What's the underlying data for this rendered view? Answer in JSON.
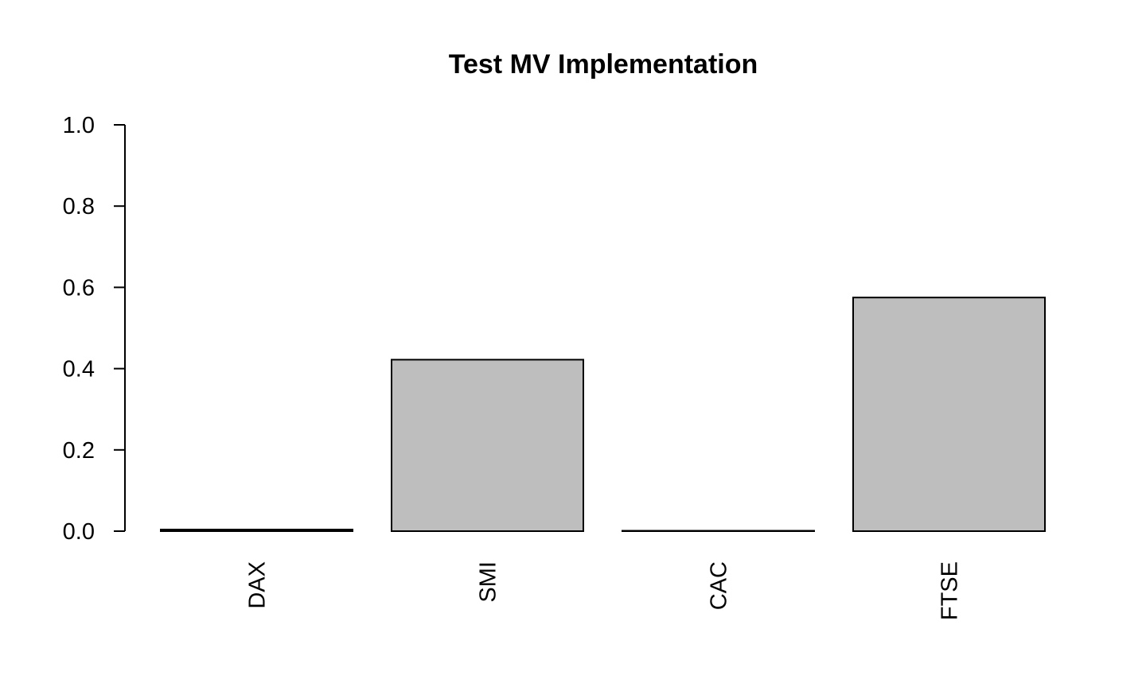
{
  "chart_data": {
    "type": "bar",
    "title": "Test MV Implementation",
    "xlabel": "",
    "ylabel": "",
    "categories": [
      "DAX",
      "SMI",
      "CAC",
      "FTSE"
    ],
    "values": [
      0.004,
      0.422,
      0.001,
      0.575
    ],
    "ylim": [
      0,
      1
    ],
    "yticks": [
      "0.0",
      "0.2",
      "0.4",
      "0.6",
      "0.8",
      "1.0"
    ],
    "bar_color": "#bebebe",
    "grid": false,
    "legend": "none"
  }
}
